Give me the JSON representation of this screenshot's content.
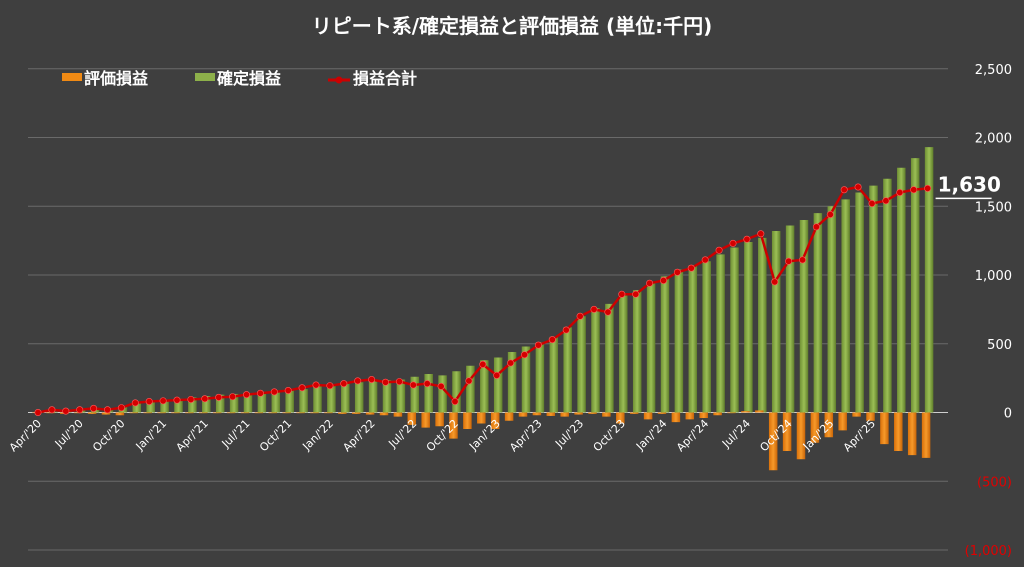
{
  "chart_data": {
    "type": "bar",
    "title": "リピート系/確定損益と評価損益 (単位:千円)",
    "legend": [
      {
        "key": "unrealized",
        "label": "評価損益",
        "color": "#f08a14",
        "marker": "bar"
      },
      {
        "key": "realized",
        "label": "確定損益",
        "color": "#8db04a",
        "marker": "bar"
      },
      {
        "key": "total",
        "label": "損益合計",
        "color": "#cc0000",
        "marker": "line"
      }
    ],
    "legend_position": "top",
    "y_ticks": [
      {
        "value": 2500,
        "label": "2,500"
      },
      {
        "value": 2000,
        "label": "2,000"
      },
      {
        "value": 1500,
        "label": "1,500"
      },
      {
        "value": 1000,
        "label": "1,000"
      },
      {
        "value": 500,
        "label": "500"
      },
      {
        "value": 0,
        "label": "0"
      },
      {
        "value": -500,
        "label": "(500)"
      },
      {
        "value": -1000,
        "label": "(1,000)"
      }
    ],
    "ylim": [
      -1000,
      2500
    ],
    "grid": true,
    "x_labels": [
      {
        "index": 0,
        "label": "Apr/'20"
      },
      {
        "index": 3,
        "label": "Jul/'20"
      },
      {
        "index": 6,
        "label": "Oct/'20"
      },
      {
        "index": 9,
        "label": "Jan/'21"
      },
      {
        "index": 12,
        "label": "Apr/'21"
      },
      {
        "index": 15,
        "label": "Jul/'21"
      },
      {
        "index": 18,
        "label": "Oct/'21"
      },
      {
        "index": 21,
        "label": "Jan/'22"
      },
      {
        "index": 24,
        "label": "Apr/'22"
      },
      {
        "index": 27,
        "label": "Jul/'22"
      },
      {
        "index": 30,
        "label": "Oct/'22"
      },
      {
        "index": 33,
        "label": "Jan/'23"
      },
      {
        "index": 36,
        "label": "Apr/'23"
      },
      {
        "index": 39,
        "label": "Jul/'23"
      },
      {
        "index": 42,
        "label": "Oct/'23"
      },
      {
        "index": 45,
        "label": "Jan/'24"
      },
      {
        "index": 48,
        "label": "Apr/'24"
      },
      {
        "index": 51,
        "label": "Jul/'24"
      },
      {
        "index": 54,
        "label": "Oct/'24"
      },
      {
        "index": 57,
        "label": "Jan/'25"
      },
      {
        "index": 60,
        "label": "Apr/'25"
      }
    ],
    "series": [
      {
        "name": "確定損益",
        "key": "realized",
        "values": [
          0,
          5,
          10,
          15,
          25,
          30,
          40,
          70,
          80,
          90,
          100,
          110,
          120,
          130,
          135,
          140,
          150,
          155,
          160,
          170,
          190,
          200,
          210,
          220,
          230,
          235,
          240,
          260,
          280,
          270,
          300,
          340,
          380,
          400,
          440,
          480,
          510,
          550,
          620,
          700,
          760,
          790,
          850,
          890,
          940,
          990,
          1040,
          1070,
          1100,
          1150,
          1200,
          1240,
          1270,
          1320,
          1360,
          1400,
          1450,
          1500,
          1550,
          1600,
          1650,
          1700,
          1780,
          1850,
          1930
        ]
      },
      {
        "name": "評価損益",
        "key": "unrealized",
        "values": [
          0,
          -5,
          -10,
          -5,
          -10,
          -15,
          -20,
          -5,
          -5,
          -5,
          -5,
          -5,
          -5,
          -5,
          -5,
          -5,
          -5,
          -5,
          -5,
          -5,
          -5,
          -5,
          -10,
          -10,
          -15,
          -20,
          -30,
          -90,
          -110,
          -100,
          -190,
          -120,
          -80,
          -120,
          -60,
          -30,
          -20,
          -25,
          -30,
          -15,
          -10,
          -30,
          -80,
          -10,
          -50,
          -10,
          -70,
          -50,
          -40,
          -20,
          -5,
          10,
          15,
          -420,
          -280,
          -340,
          -220,
          -180,
          -130,
          -30,
          -60,
          -230,
          -280,
          -310,
          -330
        ]
      },
      {
        "name": "損益合計",
        "key": "total",
        "values": [
          0,
          20,
          10,
          20,
          30,
          20,
          35,
          70,
          80,
          85,
          90,
          95,
          100,
          110,
          115,
          130,
          140,
          150,
          160,
          180,
          200,
          195,
          210,
          230,
          240,
          220,
          225,
          200,
          210,
          190,
          80,
          230,
          350,
          270,
          360,
          420,
          490,
          530,
          600,
          700,
          750,
          730,
          860,
          860,
          940,
          960,
          1020,
          1050,
          1110,
          1180,
          1230,
          1260,
          1300,
          950,
          1100,
          1110,
          1350,
          1440,
          1620,
          1640,
          1520,
          1540,
          1600,
          1620,
          1630
        ]
      }
    ],
    "callout": {
      "index": 64,
      "label": "1,630"
    }
  }
}
